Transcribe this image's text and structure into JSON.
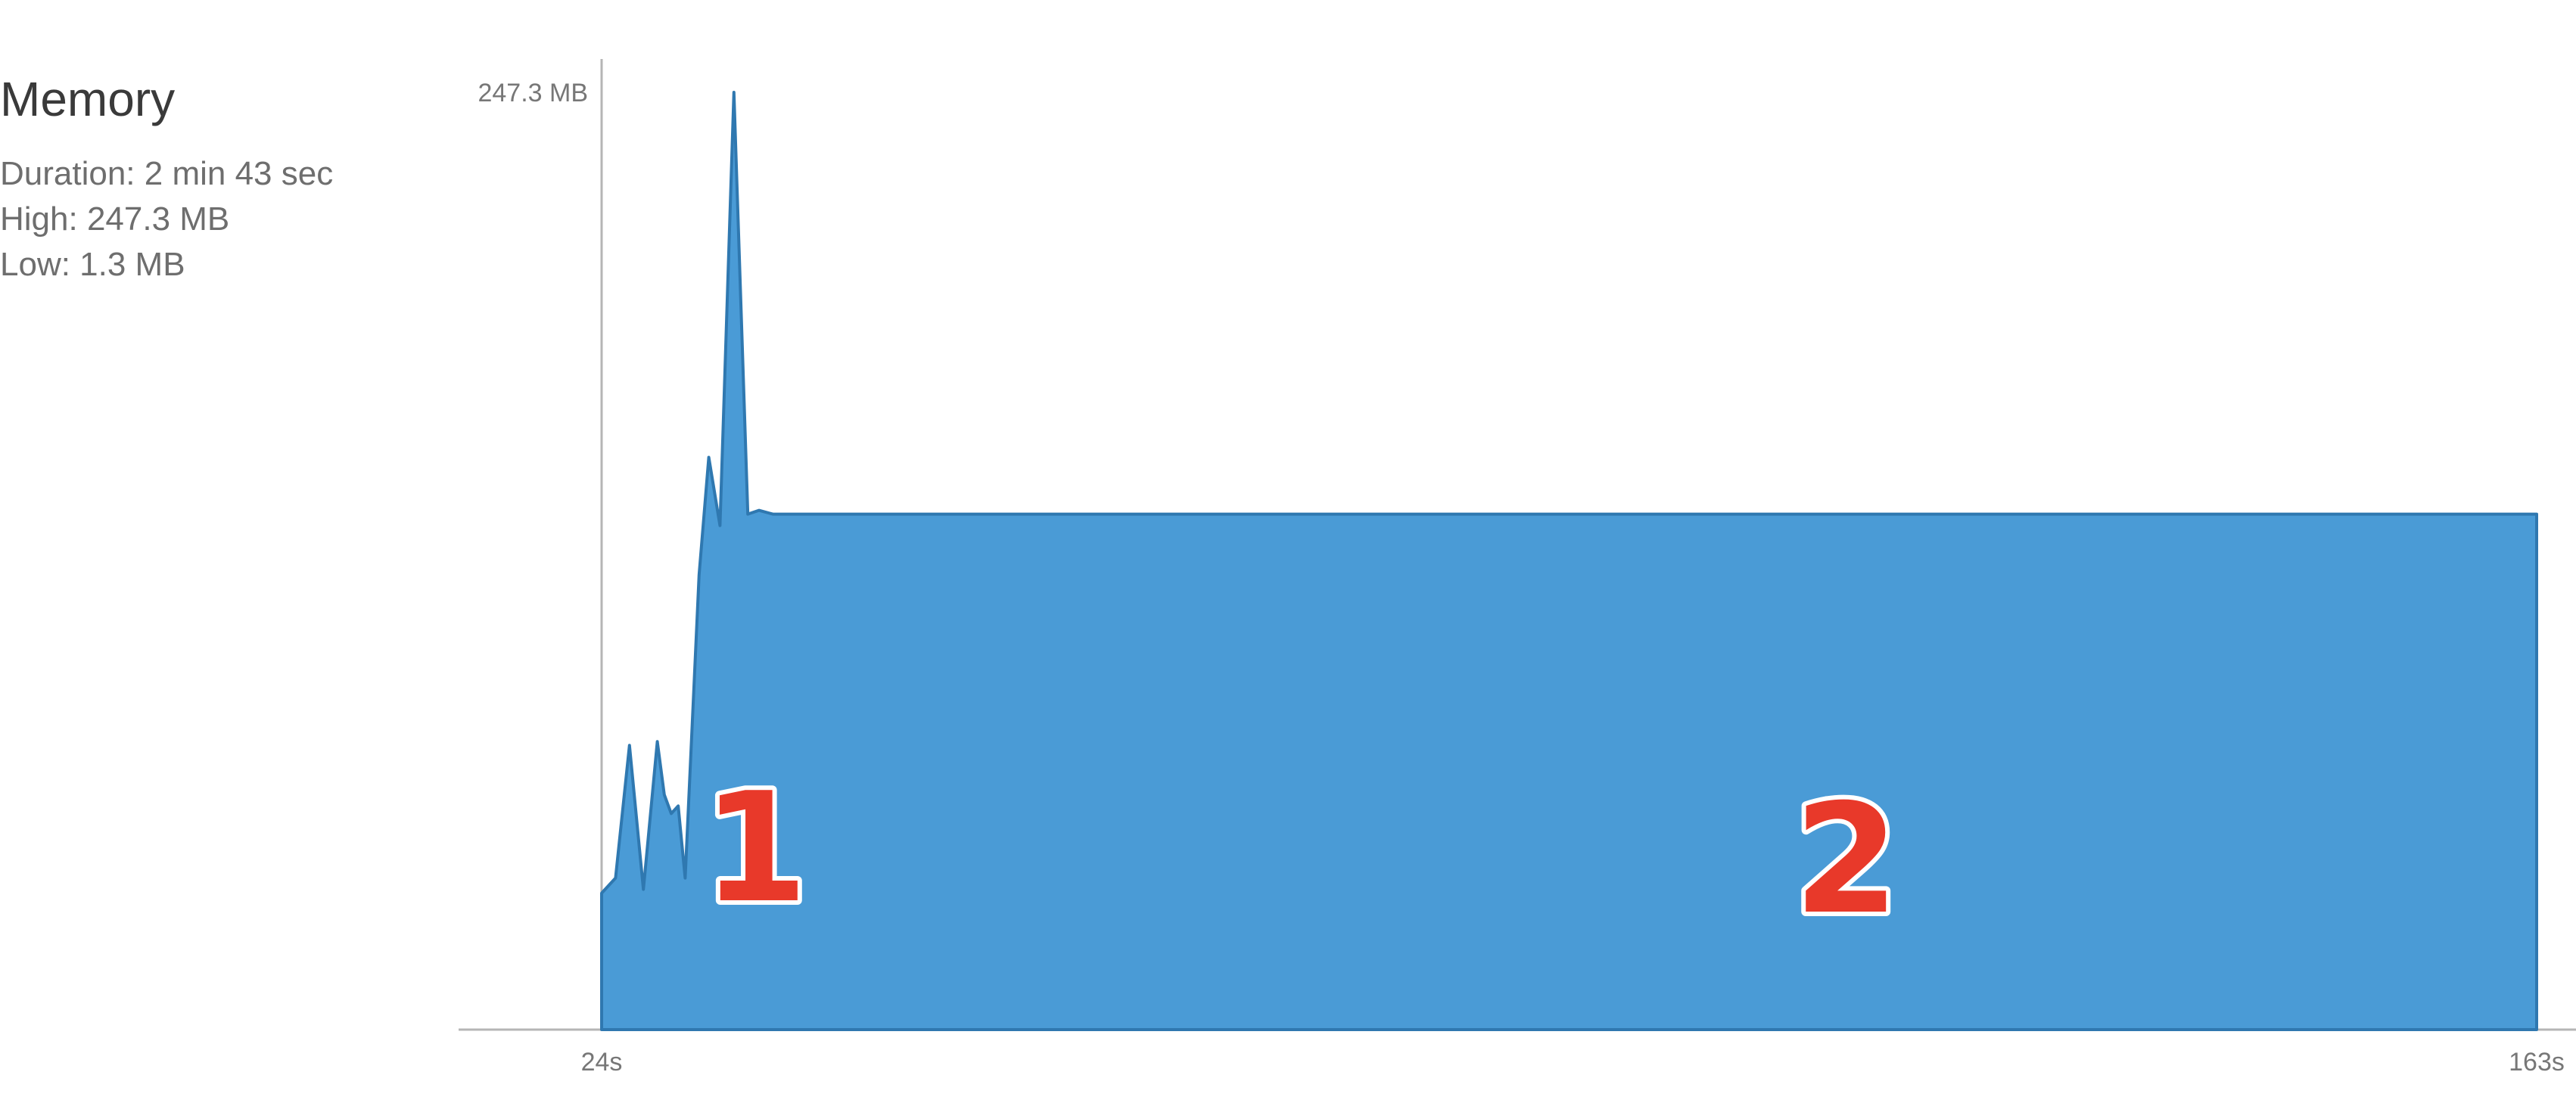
{
  "panel": {
    "title": "Memory",
    "duration": "Duration: 2 min 43 sec",
    "high": "High: 247.3 MB",
    "low": "Low: 1.3 MB"
  },
  "annotations": [
    {
      "text": "1"
    },
    {
      "text": "2"
    }
  ],
  "colors": {
    "fill": "#4a9bd6",
    "stroke": "#2f78b0",
    "axis": "#b5b5b5",
    "marker": "#e8392a"
  },
  "chart_data": {
    "type": "area",
    "title": "",
    "xlabel": "",
    "ylabel": "",
    "x_tick_labels": [
      "24s",
      "163s"
    ],
    "y_tick_labels": [
      "247.3 MB"
    ],
    "xlim": [
      24,
      163
    ],
    "ylim": [
      0,
      247.3
    ],
    "grid": false,
    "series": [
      {
        "x": [
          24,
          25,
          26,
          27,
          28,
          28.5,
          29,
          29.5,
          30,
          31,
          31.7,
          32.5,
          33.5,
          34.5,
          35.3,
          36.3,
          37.5,
          38.5,
          39.5,
          40.3,
          163
        ],
        "values": [
          36,
          40,
          75,
          37,
          76,
          62,
          57,
          59,
          40,
          120,
          151,
          133,
          247.3,
          136,
          137,
          136,
          136,
          136,
          136,
          136,
          136
        ]
      }
    ]
  }
}
